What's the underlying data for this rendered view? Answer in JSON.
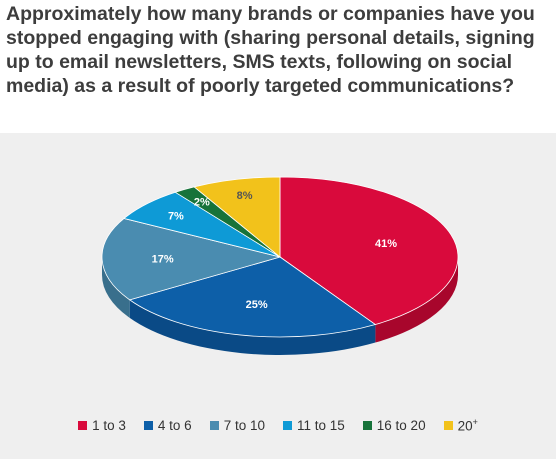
{
  "chart_data": {
    "type": "pie",
    "title": "Approximately how many brands or companies have you stopped engaging with (sharing personal details, signing up to email newsletters, SMS texts, following on social media) as a result of poorly targeted communications?",
    "categories": [
      "1 to 3",
      "4 to 6",
      "7 to 10",
      "11 to 15",
      "16 to 20",
      "20+"
    ],
    "values": [
      41,
      25,
      17,
      7,
      2,
      8
    ],
    "value_labels": [
      "41%",
      "25%",
      "17%",
      "7%",
      "2%",
      "8%"
    ],
    "colors": [
      "#d90a3c",
      "#0d5fa8",
      "#4a8cb0",
      "#0e9ad6",
      "#17733a",
      "#f2c21b"
    ],
    "side_colors": [
      "#a8062c",
      "#0a4a86",
      "#396f8c",
      "#0b79a9",
      "#0f5a2c",
      "#c49b10"
    ],
    "legend_position": "bottom",
    "legend_labels": [
      {
        "text": "1 to 3",
        "sup": ""
      },
      {
        "text": "4 to 6",
        "sup": ""
      },
      {
        "text": "7 to 10",
        "sup": ""
      },
      {
        "text": "11 to 15",
        "sup": ""
      },
      {
        "text": "16 to 20",
        "sup": ""
      },
      {
        "text": "20",
        "sup": "+"
      }
    ]
  }
}
